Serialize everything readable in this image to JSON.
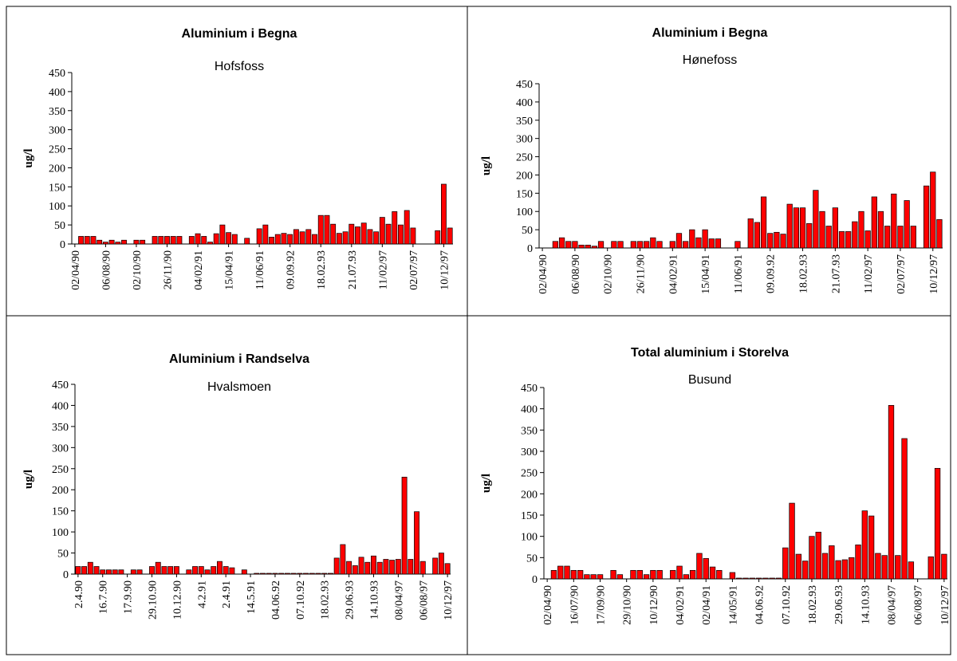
{
  "chart_data": [
    {
      "type": "bar",
      "title": "Aluminium i Begna",
      "subtitle": "Hofsfoss",
      "y_label": "ug/l",
      "color": "#ff0000",
      "ylim": [
        0,
        450
      ],
      "yticks": [
        0,
        50,
        100,
        150,
        200,
        250,
        300,
        350,
        400,
        450
      ],
      "categories": [
        "02/04/90",
        null,
        null,
        null,
        null,
        "06/08/90",
        null,
        null,
        null,
        null,
        "02/10/90",
        null,
        null,
        null,
        null,
        "26/11/90",
        null,
        null,
        null,
        null,
        "04/02/91",
        null,
        null,
        null,
        null,
        "15/04/91",
        null,
        null,
        null,
        null,
        "11/06/91",
        null,
        null,
        null,
        null,
        "09.09.92",
        null,
        null,
        null,
        null,
        "18.02.93",
        null,
        null,
        null,
        null,
        "21.07.93",
        null,
        null,
        null,
        null,
        "11/02/97",
        null,
        null,
        null,
        null,
        "02/07/97",
        null,
        null,
        null,
        null,
        "10/12/97",
        null
      ],
      "values": [
        null,
        20,
        20,
        20,
        10,
        5,
        10,
        5,
        10,
        null,
        10,
        10,
        null,
        20,
        20,
        20,
        20,
        20,
        null,
        20,
        27,
        20,
        5,
        27,
        50,
        30,
        25,
        null,
        15,
        null,
        40,
        50,
        18,
        25,
        28,
        25,
        38,
        32,
        38,
        25,
        75,
        75,
        52,
        28,
        32,
        52,
        45,
        55,
        38,
        32,
        70,
        52,
        85,
        50,
        88,
        42,
        null,
        null,
        null,
        35,
        157,
        42
      ]
    },
    {
      "type": "bar",
      "title": "Aluminium i Begna",
      "subtitle": "Hønefoss",
      "y_label": "ug/l",
      "color": "#ff0000",
      "ylim": [
        0,
        450
      ],
      "yticks": [
        0,
        50,
        100,
        150,
        200,
        250,
        300,
        350,
        400,
        450
      ],
      "categories": [
        "02/04/90",
        null,
        null,
        null,
        null,
        "06/08/90",
        null,
        null,
        null,
        null,
        "02/10/90",
        null,
        null,
        null,
        null,
        "26/11/90",
        null,
        null,
        null,
        null,
        "04/02/91",
        null,
        null,
        null,
        null,
        "15/04/91",
        null,
        null,
        null,
        null,
        "11/06/91",
        null,
        null,
        null,
        null,
        "09.09.92",
        null,
        null,
        null,
        null,
        "18.02.93",
        null,
        null,
        null,
        null,
        "21.07.93",
        null,
        null,
        null,
        null,
        "11/02/97",
        null,
        null,
        null,
        null,
        "02/07/97",
        null,
        null,
        null,
        null,
        "10/12/97",
        null
      ],
      "values": [
        null,
        null,
        18,
        28,
        18,
        18,
        8,
        8,
        5,
        18,
        null,
        18,
        18,
        null,
        18,
        18,
        18,
        28,
        18,
        null,
        18,
        40,
        18,
        50,
        28,
        50,
        25,
        25,
        null,
        null,
        18,
        null,
        80,
        70,
        140,
        40,
        43,
        38,
        120,
        110,
        110,
        67,
        158,
        100,
        60,
        110,
        45,
        45,
        72,
        100,
        47,
        140,
        100,
        60,
        148,
        60,
        130,
        60,
        null,
        170,
        208,
        78
      ]
    },
    {
      "type": "bar",
      "title": "Aluminium i Randselva",
      "subtitle": "Hvalsmoen",
      "y_label": "ug/l",
      "color": "#ff0000",
      "ylim": [
        0,
        450
      ],
      "yticks": [
        0,
        50,
        100,
        150,
        200,
        250,
        300,
        350,
        400,
        450
      ],
      "categories": [
        "2.4.90",
        null,
        null,
        null,
        "16.7.90",
        null,
        null,
        null,
        "17.9.90",
        null,
        null,
        null,
        "29.10.90",
        null,
        null,
        null,
        "10.12.90",
        null,
        null,
        null,
        "4.2.91",
        null,
        null,
        null,
        "2.4.91",
        null,
        null,
        null,
        "14.5.91",
        null,
        null,
        null,
        "04.06.92",
        null,
        null,
        null,
        "07.10.92",
        null,
        null,
        null,
        "18.02.93",
        null,
        null,
        null,
        "29.06.93",
        null,
        null,
        null,
        "14.10.93",
        null,
        null,
        null,
        "08/04/97",
        null,
        null,
        null,
        "06/08/97",
        null,
        null,
        null,
        "10/12/97"
      ],
      "values": [
        18,
        18,
        28,
        18,
        10,
        10,
        10,
        10,
        null,
        10,
        10,
        null,
        18,
        28,
        18,
        18,
        18,
        null,
        10,
        18,
        18,
        10,
        18,
        30,
        18,
        15,
        null,
        10,
        null,
        0,
        0,
        0,
        0,
        0,
        0,
        0,
        0,
        0,
        0,
        0,
        0,
        0,
        38,
        70,
        30,
        20,
        40,
        28,
        43,
        28,
        35,
        33,
        35,
        230,
        35,
        148,
        30,
        null,
        38,
        50,
        25
      ]
    },
    {
      "type": "bar",
      "title": "Total aluminium i Storelva",
      "subtitle": "Busund",
      "y_label": "ug/l",
      "color": "#ff0000",
      "ylim": [
        0,
        450
      ],
      "yticks": [
        0,
        50,
        100,
        150,
        200,
        250,
        300,
        350,
        400,
        450
      ],
      "categories": [
        "02/04/90",
        null,
        null,
        null,
        "16/07/90",
        null,
        null,
        null,
        "17/09/90",
        null,
        null,
        null,
        "29/10/90",
        null,
        null,
        null,
        "10/12/90",
        null,
        null,
        null,
        "04/02/91",
        null,
        null,
        null,
        "02/04/91",
        null,
        null,
        null,
        "14/05/91",
        null,
        null,
        null,
        "04.06.92",
        null,
        null,
        null,
        "07.10.92",
        null,
        null,
        null,
        "18.02.93",
        null,
        null,
        null,
        "29.06.93",
        null,
        null,
        null,
        "14.10.93",
        null,
        null,
        null,
        "08/04/97",
        null,
        null,
        null,
        "06/08/97",
        null,
        null,
        null,
        "10/12/97"
      ],
      "values": [
        null,
        20,
        30,
        30,
        20,
        20,
        10,
        10,
        10,
        null,
        20,
        10,
        null,
        20,
        20,
        10,
        20,
        20,
        null,
        20,
        30,
        10,
        20,
        60,
        48,
        28,
        20,
        null,
        15,
        0,
        0,
        0,
        0,
        0,
        0,
        0,
        73,
        178,
        58,
        42,
        100,
        110,
        60,
        78,
        43,
        45,
        50,
        80,
        160,
        148,
        60,
        55,
        408,
        55,
        330,
        40,
        null,
        null,
        52,
        260,
        58
      ]
    }
  ]
}
